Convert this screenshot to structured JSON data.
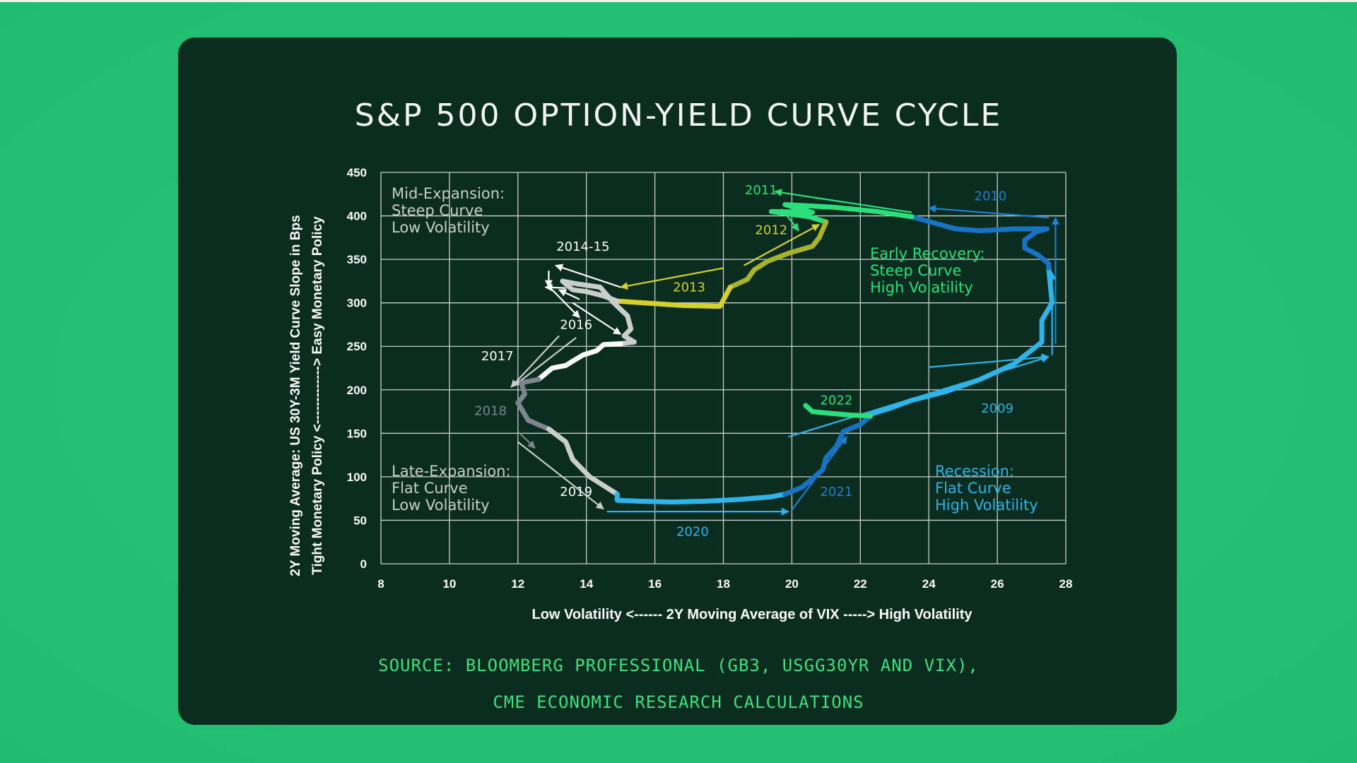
{
  "title": "S&P 500 OPTION-YIELD CURVE CYCLE",
  "source_line1": "SOURCE: BLOOMBERG PROFESSIONAL (GB3, USGG30YR AND VIX),",
  "source_line2": "CME ECONOMIC RESEARCH CALCULATIONS",
  "colors": {
    "background": "#22c173",
    "card": "#0a2d20",
    "green_light": "#2be07a",
    "yellow": "#d4d12a",
    "olive": "#a8b32a",
    "blue_dark": "#1873c4",
    "blue_light": "#2fb4ea",
    "grey_light": "#d0d4d2",
    "grey_dark": "#7c8590"
  },
  "chart_data": {
    "type": "line",
    "title": "S&P 500 OPTION-YIELD CURVE CYCLE",
    "xlabel": "Low Volatility <------ 2Y Moving Average of VIX -----> High Volatility",
    "ylabel_line1": "2Y Moving Average: US 30Y-3M  Yield Curve Slope in Bps",
    "ylabel_line2": "Tight Monetary Policy <-------------> Easy Monetary Policy",
    "xlim": [
      8,
      28
    ],
    "ylim": [
      0,
      450
    ],
    "x_ticks": [
      "8",
      "10",
      "12",
      "14",
      "16",
      "18",
      "20",
      "22",
      "24",
      "26",
      "28"
    ],
    "y_ticks": [
      "0",
      "50",
      "100",
      "150",
      "200",
      "250",
      "300",
      "350",
      "400",
      "450"
    ],
    "grid": true,
    "quadrant_labels": [
      {
        "name": "mid-expansion",
        "lines": [
          "Mid-Expansion:",
          "Steep Curve",
          "Low Volatility"
        ],
        "color": "#c9cdcb"
      },
      {
        "name": "early-recovery",
        "lines": [
          "Early Recovery:",
          "Steep Curve",
          "High Volatility"
        ],
        "color": "#2be07a"
      },
      {
        "name": "late-expansion",
        "lines": [
          "Late-Expansion:",
          "Flat Curve",
          "Low Volatility"
        ],
        "color": "#c9cdcb"
      },
      {
        "name": "recession",
        "lines": [
          "Recession:",
          "Flat Curve",
          "High Volatility"
        ],
        "color": "#2fb4ea"
      }
    ],
    "year_labels": [
      {
        "label": "2011",
        "x": 19.1,
        "y": 425,
        "color": "#2be07a"
      },
      {
        "label": "2010",
        "x": 25.8,
        "y": 418,
        "color": "#1f7fd0"
      },
      {
        "label": "2012",
        "x": 19.4,
        "y": 379,
        "color": "#d4d12a"
      },
      {
        "label": "2014-15",
        "x": 13.9,
        "y": 360,
        "color": "#ffffff"
      },
      {
        "label": "2013",
        "x": 17.0,
        "y": 313,
        "color": "#d4d12a"
      },
      {
        "label": "2016",
        "x": 13.7,
        "y": 270,
        "color": "#ffffff"
      },
      {
        "label": "2017",
        "x": 11.4,
        "y": 234,
        "color": "#ffffff"
      },
      {
        "label": "2022",
        "x": 21.3,
        "y": 183,
        "color": "#2be07a"
      },
      {
        "label": "2018",
        "x": 11.2,
        "y": 171,
        "color": "#7c8590"
      },
      {
        "label": "2009",
        "x": 26.0,
        "y": 174,
        "color": "#2fb4ea"
      },
      {
        "label": "2021",
        "x": 21.3,
        "y": 78,
        "color": "#1f7fd0"
      },
      {
        "label": "2019",
        "x": 13.7,
        "y": 78,
        "color": "#ffffff"
      },
      {
        "label": "2020",
        "x": 17.1,
        "y": 32,
        "color": "#2fb4ea"
      }
    ],
    "series": [
      {
        "name": "2009",
        "color": "#2fb4ea",
        "width": 7,
        "points": [
          [
            27.5,
            340
          ],
          [
            27.6,
            300
          ],
          [
            27.3,
            280
          ],
          [
            27.3,
            255
          ],
          [
            26.5,
            230
          ],
          [
            25.5,
            212
          ],
          [
            24.5,
            198
          ],
          [
            23.5,
            188
          ],
          [
            22.8,
            178
          ],
          [
            22.3,
            172
          ]
        ]
      },
      {
        "name": "2010",
        "color": "#1873c4",
        "width": 7,
        "points": [
          [
            27.45,
            385
          ],
          [
            26.5,
            385
          ],
          [
            25.5,
            383
          ],
          [
            24.8,
            385
          ],
          [
            24.5,
            388
          ],
          [
            23.5,
            399
          ]
        ]
      },
      {
        "name": "2010b",
        "color": "#1873c4",
        "width": 7,
        "points": [
          [
            27.45,
            385
          ],
          [
            27.15,
            382
          ],
          [
            26.8,
            372
          ],
          [
            26.8,
            363
          ],
          [
            27.2,
            355
          ],
          [
            27.5,
            345
          ],
          [
            27.5,
            340
          ]
        ]
      },
      {
        "name": "2011",
        "color": "#2be07a",
        "width": 7,
        "points": [
          [
            23.5,
            399
          ],
          [
            22.5,
            405
          ],
          [
            21.2,
            410
          ],
          [
            19.8,
            413
          ],
          [
            20.6,
            404
          ],
          [
            19.4,
            405
          ],
          [
            20.5,
            399
          ],
          [
            21.0,
            393
          ]
        ]
      },
      {
        "name": "2012",
        "color": "#a8b32a",
        "width": 7,
        "points": [
          [
            21.0,
            393
          ],
          [
            20.8,
            375
          ],
          [
            20.6,
            365
          ],
          [
            19.9,
            357
          ],
          [
            19.3,
            348
          ],
          [
            18.9,
            338
          ],
          [
            18.7,
            327
          ],
          [
            18.2,
            318
          ]
        ]
      },
      {
        "name": "2013",
        "color": "#d4d12a",
        "width": 7,
        "points": [
          [
            18.2,
            318
          ],
          [
            17.9,
            296
          ],
          [
            16.8,
            297
          ],
          [
            15.7,
            300
          ],
          [
            14.9,
            302
          ]
        ]
      },
      {
        "name": "2014-15",
        "color": "#c9cdcb",
        "width": 7,
        "points": [
          [
            14.9,
            302
          ],
          [
            14.5,
            308
          ],
          [
            14.0,
            313
          ],
          [
            13.6,
            315
          ],
          [
            13.3,
            325
          ],
          [
            13.7,
            322
          ],
          [
            14.4,
            318
          ],
          [
            14.8,
            300
          ],
          [
            15.2,
            285
          ],
          [
            15.3,
            270
          ],
          [
            15.1,
            262
          ],
          [
            15.4,
            255
          ],
          [
            15.0,
            253
          ]
        ]
      },
      {
        "name": "2016",
        "color": "#ffffff",
        "width": 7,
        "points": [
          [
            15.0,
            253
          ],
          [
            14.5,
            252
          ],
          [
            14.3,
            245
          ],
          [
            13.9,
            240
          ],
          [
            13.6,
            233
          ],
          [
            13.4,
            228
          ],
          [
            13.0,
            225
          ],
          [
            12.6,
            212
          ]
        ]
      },
      {
        "name": "2017-2018",
        "color": "#7c8590",
        "width": 7,
        "points": [
          [
            12.6,
            212
          ],
          [
            12.1,
            208
          ],
          [
            12.2,
            195
          ],
          [
            12.0,
            185
          ],
          [
            12.3,
            165
          ],
          [
            12.9,
            155
          ]
        ]
      },
      {
        "name": "2019",
        "color": "#c9cdcb",
        "width": 7,
        "points": [
          [
            12.9,
            155
          ],
          [
            13.4,
            140
          ],
          [
            13.6,
            120
          ],
          [
            14.1,
            100
          ],
          [
            14.5,
            90
          ],
          [
            14.9,
            80
          ]
        ]
      },
      {
        "name": "2020",
        "color": "#2fb4ea",
        "width": 7,
        "points": [
          [
            14.9,
            80
          ],
          [
            14.9,
            73
          ],
          [
            15.5,
            72
          ],
          [
            16.5,
            71
          ],
          [
            17.5,
            72
          ],
          [
            18.5,
            74
          ],
          [
            19.4,
            77
          ],
          [
            19.8,
            80
          ]
        ]
      },
      {
        "name": "2021",
        "color": "#1873c4",
        "width": 7,
        "points": [
          [
            19.8,
            80
          ],
          [
            20.3,
            88
          ],
          [
            20.6,
            98
          ],
          [
            20.9,
            108
          ],
          [
            21.0,
            122
          ],
          [
            21.3,
            135
          ],
          [
            21.5,
            152
          ],
          [
            22.0,
            160
          ],
          [
            22.3,
            170
          ]
        ]
      },
      {
        "name": "2022",
        "color": "#2be07a",
        "width": 7,
        "points": [
          [
            22.3,
            170
          ],
          [
            21.7,
            171
          ],
          [
            21.1,
            173
          ],
          [
            20.6,
            175
          ],
          [
            20.4,
            182
          ]
        ]
      }
    ]
  }
}
